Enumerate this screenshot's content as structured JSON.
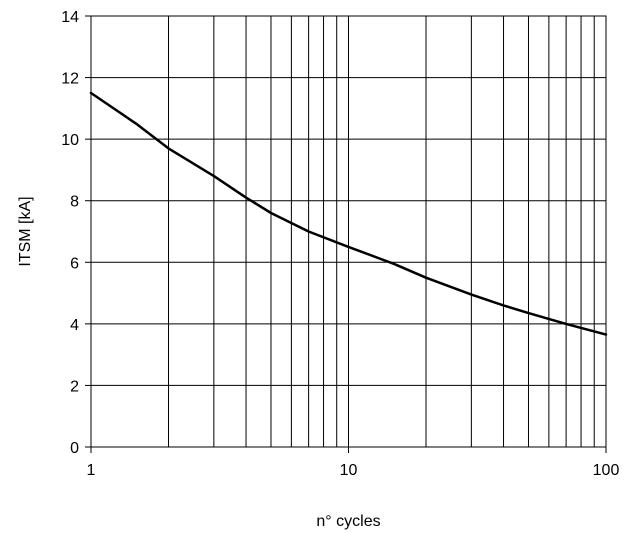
{
  "chart_data": {
    "type": "line",
    "title": "",
    "xlabel": "n° cycles",
    "ylabel": "ITSM [kA]",
    "xscale": "log",
    "xlim": [
      1,
      100
    ],
    "ylim": [
      0,
      14
    ],
    "grid": true,
    "x_ticks": [
      1,
      10,
      100
    ],
    "x_tick_labels": [
      "1",
      "10",
      "100"
    ],
    "y_ticks": [
      0,
      2,
      4,
      6,
      8,
      10,
      12,
      14
    ],
    "y_tick_labels": [
      "0",
      "2",
      "4",
      "6",
      "8",
      "10",
      "12",
      "14"
    ],
    "series": [
      {
        "color": "#000000",
        "x": [
          1,
          1.5,
          2,
          3,
          4,
          5,
          7,
          10,
          15,
          20,
          30,
          40,
          50,
          70,
          100
        ],
        "y": [
          11.5,
          10.5,
          9.7,
          8.8,
          8.1,
          7.6,
          7.0,
          6.5,
          5.95,
          5.5,
          4.95,
          4.6,
          4.35,
          4.0,
          3.65
        ]
      }
    ]
  }
}
